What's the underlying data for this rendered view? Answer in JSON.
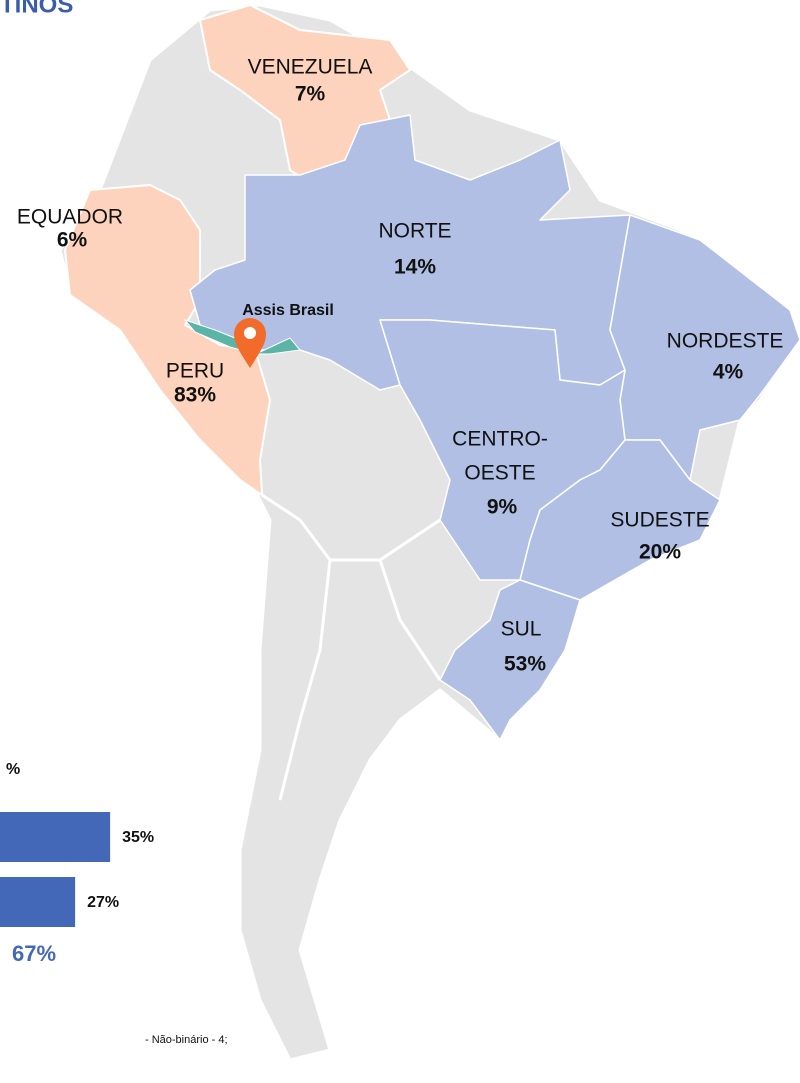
{
  "title": "TINOS",
  "regions": [
    {
      "name": [
        "VENEZUELA"
      ],
      "value": "7%"
    },
    {
      "name": [
        "EQUADOR"
      ],
      "value": "6%"
    },
    {
      "name": [
        "PERU"
      ],
      "value": "83%"
    },
    {
      "name": [
        "NORTE"
      ],
      "value": "14%"
    },
    {
      "name": [
        "NORDESTE"
      ],
      "value": "4%"
    },
    {
      "name": [
        "CENTRO-",
        "OESTE"
      ],
      "value": "9%"
    },
    {
      "name": [
        "SUDESTE"
      ],
      "value": "20%"
    },
    {
      "name": [
        "SUL"
      ],
      "value": "53%"
    }
  ],
  "location": "Assis Brasil",
  "panel": {
    "heading": "%",
    "bars": {
      "values": [
        35,
        27
      ],
      "value_labels": [
        "35%",
        "27%"
      ],
      "color": "#4468b8"
    },
    "total": "67%",
    "footnote": "-  Não-binário - 4;"
  }
}
